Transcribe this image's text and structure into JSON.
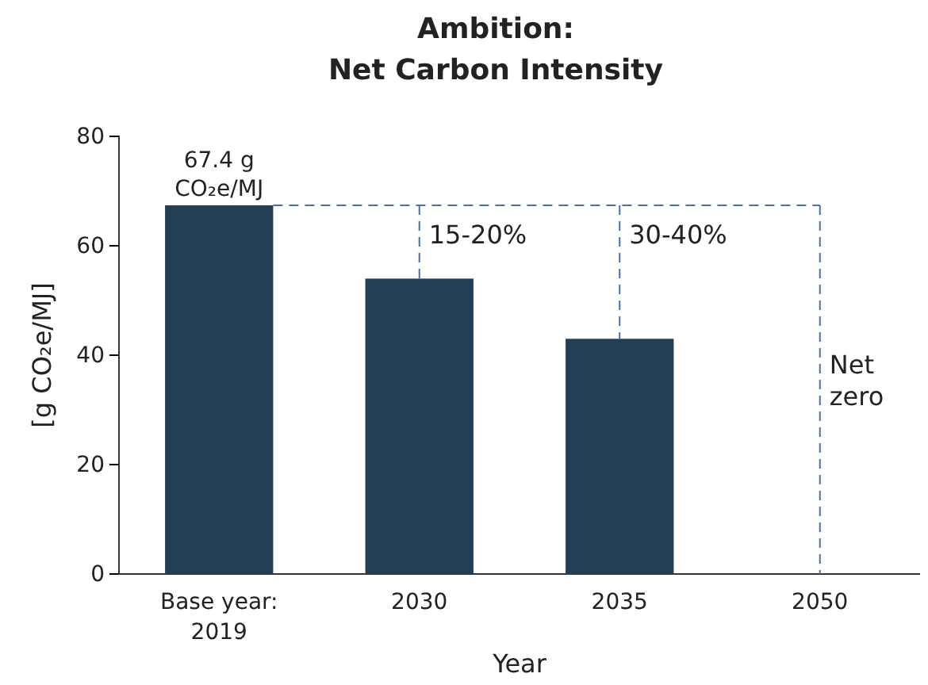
{
  "chart_data": {
    "type": "bar",
    "title": "Ambition:\nNet Carbon Intensity",
    "xlabel": "Year",
    "ylabel": "[g CO₂e/MJ]",
    "categories": [
      "Base year:\n2019",
      "2030",
      "2035",
      "2050"
    ],
    "values": [
      67.4,
      54,
      43,
      0
    ],
    "value_labels": [
      "67.4 g\nCO₂e/MJ",
      null,
      null,
      null
    ],
    "color": "#243f55",
    "ylim": [
      0,
      80
    ],
    "yticks": [
      0,
      20,
      40,
      60,
      80
    ],
    "ref_lines": [
      {
        "axis": "y",
        "value": 67.4,
        "color": "#4a6fa5",
        "line_style": "dashed"
      },
      {
        "axis": "x",
        "value": "2050",
        "color": "#4a6fa5",
        "line_style": "dashed",
        "label": "Net\nzero"
      }
    ],
    "annotations": [
      {
        "text": "15-20%",
        "x": "2030",
        "y": 54
      },
      {
        "text": "30-40%",
        "x": "2035",
        "y": 43
      }
    ]
  }
}
